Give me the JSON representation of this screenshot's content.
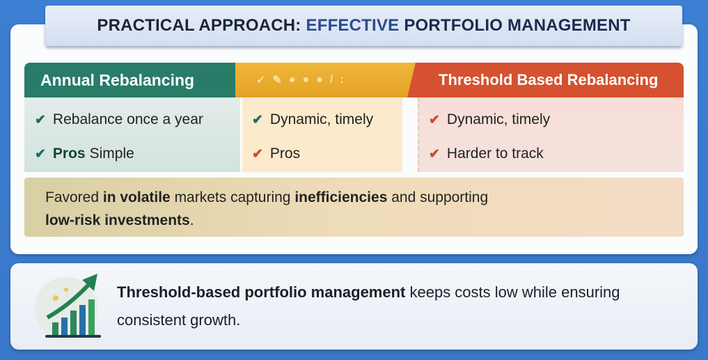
{
  "title": {
    "part1": "PRACTICAL APPROACH:",
    "part2": "EFFECTIVE",
    "part3": "PORTFOLIO MANAGEMENT"
  },
  "columns": [
    {
      "header": "Annual Rebalancing",
      "items": [
        {
          "check": "✔",
          "text": "Rebalance once a year"
        },
        {
          "check": "✔",
          "bold": "Pros",
          "text": "Simple"
        }
      ]
    },
    {
      "header": "",
      "icons": [
        "✓",
        "✎",
        "●",
        "●",
        "●",
        "/",
        ":"
      ],
      "items": [
        {
          "check": "✔",
          "text": "Dynamic, timely"
        },
        {
          "check": "✔",
          "bold": "Pros",
          "text": ""
        }
      ]
    },
    {
      "header": "Threshold Based Rebalancing",
      "items": [
        {
          "check": "✔",
          "text": "Dynamic, timely"
        },
        {
          "check": "✔",
          "text": "Harder to track"
        }
      ]
    }
  ],
  "band": {
    "t1": "Favored ",
    "b1": "in volatile",
    "t2": " markets capturing ",
    "b2": "inefficiencies",
    "t3": " and supporting ",
    "b3": "low-risk investments",
    "t4": "."
  },
  "summary": {
    "bold": "Threshold-based portfolio management",
    "text": " keeps costs low while ensuring consistent growth."
  },
  "colors": {
    "background": "#3d7fd2",
    "green": "#287c68",
    "yellow": "#e4a226",
    "red": "#d6512f"
  }
}
